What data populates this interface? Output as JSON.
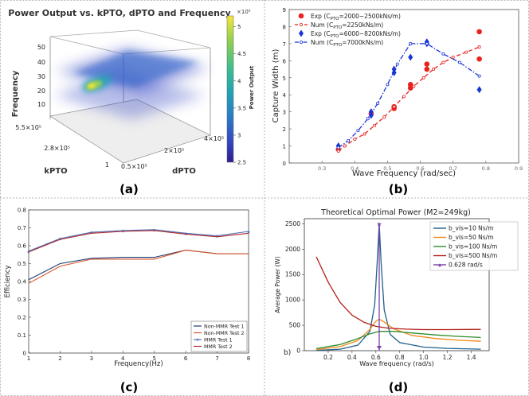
{
  "layout": {
    "dividers": true
  },
  "chart_data": [
    {
      "panel": "(a)",
      "type": "heatmap",
      "title": "Power Output vs. kPTO, dPTO and Frequency",
      "zlabel": "Frequency",
      "xlabel": "kPTO",
      "ylabel": "dPTO",
      "z_ticks": [
        "50",
        "40",
        "30",
        "20",
        "10"
      ],
      "k_ticks": [
        "5.5×10⁵",
        "2.8×10⁵",
        "1"
      ],
      "d_ticks": [
        "0.5×10⁵",
        "2×10⁵",
        "4×10⁵"
      ],
      "colorbar": {
        "label": "Power Output",
        "exponent": "×10⁵",
        "ticks": [
          "5",
          "4.5",
          "4",
          "3.5",
          "3",
          "2.5"
        ],
        "range": [
          2.5,
          5.2
        ],
        "colors": [
          "#f7e83a",
          "#9bd24b",
          "#3fbf8a",
          "#1fa4b4",
          "#2a78c8",
          "#3446c2",
          "#2d1d8f"
        ]
      }
    },
    {
      "panel": "(b)",
      "type": "scatter",
      "xlabel": "Wave Frequency (rad/sec)",
      "ylabel": "Capture Width (m)",
      "xlim": [
        0.2,
        0.9
      ],
      "ylim": [
        0,
        9
      ],
      "x_ticks": [
        0.3,
        0.4,
        0.5,
        0.6,
        0.7,
        0.8,
        0.9
      ],
      "y_ticks": [
        0,
        1,
        2,
        3,
        4,
        5,
        6,
        7,
        8,
        9
      ],
      "series": [
        {
          "name": "Exp (C_PTO=2000~2500kNs/m)",
          "name_main": "Exp (C",
          "name_sub": "PTO",
          "name_rest": "=2000~2500kNs/m)",
          "color": "#e8231e",
          "style": "points",
          "marker": "circle",
          "points": [
            [
              0.35,
              0.8
            ],
            [
              0.45,
              2.9
            ],
            [
              0.52,
              3.3
            ],
            [
              0.52,
              3.2
            ],
            [
              0.57,
              4.4
            ],
            [
              0.57,
              4.6
            ],
            [
              0.62,
              5.5
            ],
            [
              0.62,
              5.8
            ],
            [
              0.78,
              6.1
            ],
            [
              0.78,
              7.7
            ]
          ]
        },
        {
          "name": "Num (C_PTO=2250kNs/m)",
          "name_main": "Num (C",
          "name_sub": "PTO",
          "name_rest": "=2250kNs/m)",
          "color": "#e8231e",
          "style": "dashed",
          "marker": "open-circle",
          "points": [
            [
              0.35,
              0.7
            ],
            [
              0.37,
              1.0
            ],
            [
              0.4,
              1.4
            ],
            [
              0.43,
              1.7
            ],
            [
              0.46,
              2.2
            ],
            [
              0.49,
              2.7
            ],
            [
              0.52,
              3.3
            ],
            [
              0.55,
              3.9
            ],
            [
              0.58,
              4.5
            ],
            [
              0.61,
              5.0
            ],
            [
              0.64,
              5.5
            ],
            [
              0.67,
              5.9
            ],
            [
              0.7,
              6.2
            ],
            [
              0.74,
              6.5
            ],
            [
              0.78,
              6.8
            ]
          ]
        },
        {
          "name": "Exp (C_PTO=6000~8200kNs/m)",
          "name_main": "Exp (C",
          "name_sub": "PTO",
          "name_rest": "=6000~8200kNs/m)",
          "color": "#1a35d6",
          "style": "points",
          "marker": "diamond",
          "points": [
            [
              0.35,
              1.0
            ],
            [
              0.45,
              2.8
            ],
            [
              0.45,
              3.0
            ],
            [
              0.52,
              5.3
            ],
            [
              0.52,
              5.5
            ],
            [
              0.57,
              6.2
            ],
            [
              0.62,
              7.0
            ],
            [
              0.62,
              7.1
            ],
            [
              0.78,
              4.3
            ]
          ]
        },
        {
          "name": "Num (C_PTO=7000kNs/m)",
          "name_main": "Num (C",
          "name_sub": "PTO",
          "name_rest": "=7000kNs/m)",
          "color": "#1a35d6",
          "style": "dashdot",
          "marker": "open-circle",
          "points": [
            [
              0.35,
              0.9
            ],
            [
              0.38,
              1.3
            ],
            [
              0.41,
              1.9
            ],
            [
              0.44,
              2.6
            ],
            [
              0.47,
              3.5
            ],
            [
              0.5,
              4.6
            ],
            [
              0.53,
              5.8
            ],
            [
              0.57,
              7.0
            ],
            [
              0.62,
              7.0
            ],
            [
              0.67,
              6.4
            ],
            [
              0.72,
              5.9
            ],
            [
              0.78,
              5.1
            ]
          ]
        }
      ],
      "legend_position": "top-left"
    },
    {
      "panel": "(c)",
      "type": "line",
      "xlabel": "Frequency(Hz)",
      "ylabel": "Efficiency",
      "xlim": [
        1,
        8
      ],
      "ylim": [
        0,
        0.8
      ],
      "x_ticks": [
        1,
        2,
        3,
        4,
        5,
        6,
        7,
        8
      ],
      "y_ticks": [
        "0",
        "0.1",
        "0.2",
        "0.3",
        "0.4",
        "0.5",
        "0.6",
        "0.7",
        "0.8"
      ],
      "x": [
        1,
        2,
        3,
        4,
        5,
        6,
        7,
        8
      ],
      "series": [
        {
          "name": "Non-MMR Test 1",
          "color": "#1f3a6e",
          "values": [
            0.41,
            0.5,
            0.53,
            0.535,
            0.535,
            0.575,
            0.555,
            0.555
          ]
        },
        {
          "name": "Non-MMR Test 2",
          "color": "#d9542c",
          "values": [
            0.39,
            0.485,
            0.525,
            0.525,
            0.525,
            0.575,
            0.555,
            0.555
          ]
        },
        {
          "name": "MMR Test 1",
          "color": "#4b6fb5",
          "marker": "star",
          "values": [
            0.57,
            0.64,
            0.675,
            0.685,
            0.69,
            0.67,
            0.655,
            0.68
          ]
        },
        {
          "name": "MMR Test 2",
          "color": "#b0282c",
          "values": [
            0.565,
            0.635,
            0.67,
            0.68,
            0.685,
            0.665,
            0.65,
            0.67
          ]
        }
      ],
      "legend_position": "bottom-right"
    },
    {
      "panel": "(d)",
      "type": "line",
      "title": "Theoretical Optimal Power (M2=249kg)",
      "xlabel": "Wave frequency (rad/s)",
      "ylabel": "Average Power (W)",
      "xlim": [
        0.0,
        1.55
      ],
      "ylim": [
        0,
        2600
      ],
      "x_ticks": [
        "0.2",
        "0.4",
        "0.6",
        "0.8",
        "1.0",
        "1.2",
        "1.4"
      ],
      "y_ticks": [
        "0",
        "500",
        "1000",
        "1500",
        "2000",
        "2500"
      ],
      "corner_label": "b)",
      "series": [
        {
          "name": "b_vis=10 Ns/m",
          "color": "#1f5f8b",
          "points": [
            [
              0.1,
              5
            ],
            [
              0.3,
              30
            ],
            [
              0.45,
              110
            ],
            [
              0.55,
              380
            ],
            [
              0.59,
              900
            ],
            [
              0.61,
              1700
            ],
            [
              0.628,
              2500
            ],
            [
              0.645,
              1700
            ],
            [
              0.67,
              800
            ],
            [
              0.72,
              320
            ],
            [
              0.8,
              160
            ],
            [
              1.0,
              70
            ],
            [
              1.2,
              45
            ],
            [
              1.48,
              30
            ]
          ]
        },
        {
          "name": "b_vis=50 Ns/m",
          "color": "#ef8a17",
          "points": [
            [
              0.1,
              20
            ],
            [
              0.3,
              80
            ],
            [
              0.45,
              200
            ],
            [
              0.55,
              420
            ],
            [
              0.6,
              580
            ],
            [
              0.628,
              620
            ],
            [
              0.66,
              580
            ],
            [
              0.75,
              430
            ],
            [
              0.9,
              300
            ],
            [
              1.1,
              240
            ],
            [
              1.3,
              205
            ],
            [
              1.48,
              185
            ]
          ]
        },
        {
          "name": "b_vis=100 Ns/m",
          "color": "#2e8b2e",
          "points": [
            [
              0.1,
              40
            ],
            [
              0.3,
              120
            ],
            [
              0.45,
              240
            ],
            [
              0.55,
              330
            ],
            [
              0.628,
              380
            ],
            [
              0.75,
              380
            ],
            [
              0.9,
              350
            ],
            [
              1.1,
              310
            ],
            [
              1.3,
              280
            ],
            [
              1.48,
              260
            ]
          ]
        },
        {
          "name": "b_vis=500 Ns/m",
          "color": "#b22018",
          "points": [
            [
              0.1,
              1850
            ],
            [
              0.2,
              1350
            ],
            [
              0.3,
              950
            ],
            [
              0.4,
              700
            ],
            [
              0.5,
              560
            ],
            [
              0.6,
              480
            ],
            [
              0.7,
              445
            ],
            [
              0.85,
              425
            ],
            [
              1.0,
              415
            ],
            [
              1.2,
              415
            ],
            [
              1.48,
              420
            ]
          ]
        },
        {
          "name": "0.628 rad/s",
          "color": "#7b3fa8",
          "style": "marker-line",
          "points": [
            [
              0.628,
              0
            ],
            [
              0.628,
              2500
            ]
          ]
        }
      ],
      "legend_position": "top-right"
    }
  ]
}
